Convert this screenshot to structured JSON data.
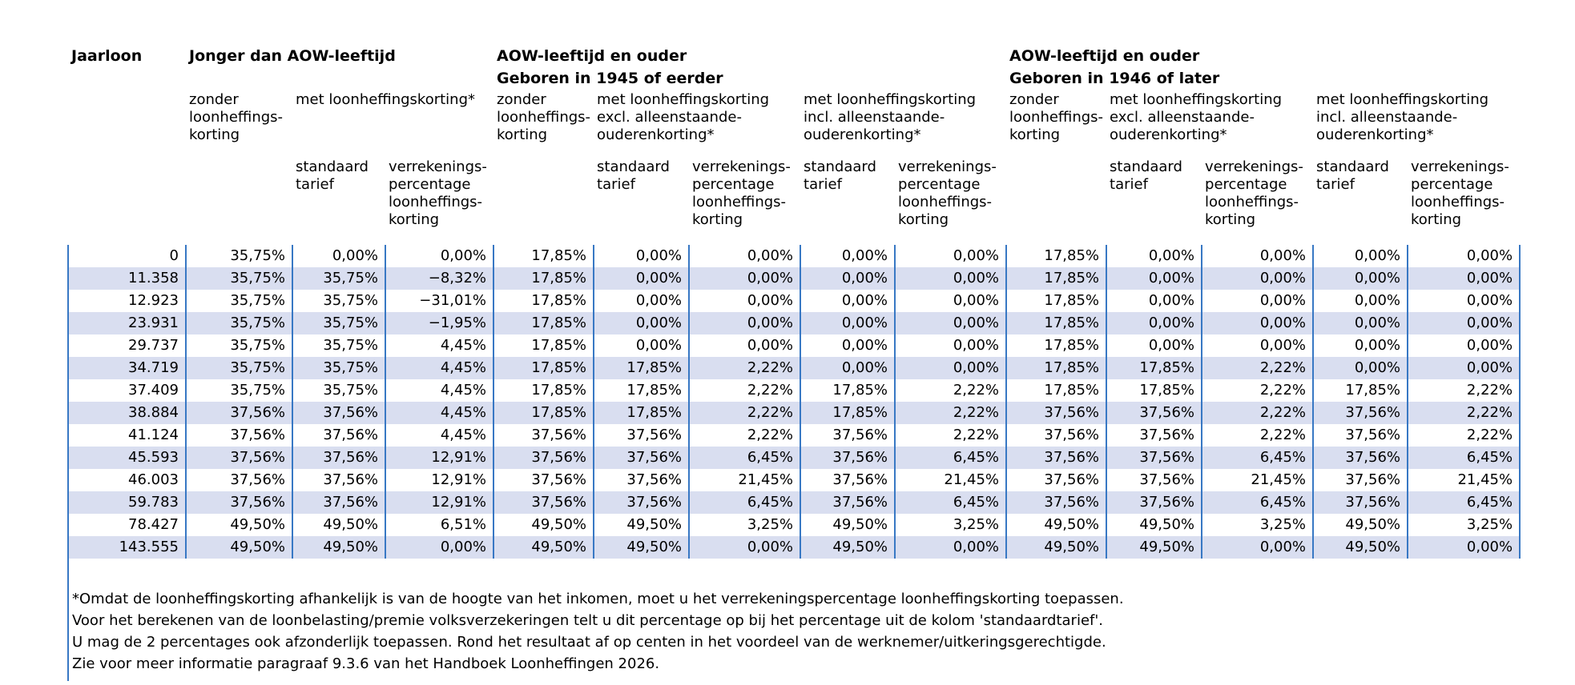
{
  "colors": {
    "border_blue": "#3878C4",
    "row_stripe": "#D9DEF0",
    "text": "#000000"
  },
  "header": {
    "jaarloon": "Jaarloon",
    "groups": [
      {
        "title": "Jonger dan AOW-leeftijd",
        "subtitle": ""
      },
      {
        "title": "AOW-leeftijd en ouder",
        "subtitle": "Geboren in 1945 of eerder"
      },
      {
        "title": "AOW-leeftijd en ouder",
        "subtitle": "Geboren in 1946 of later"
      }
    ],
    "col_zonder": "zonder\nloonheffings-\nkorting",
    "col_met": "met loonheffingskorting*",
    "col_met_excl": "met loonheffingskorting\nexcl. alleenstaande-\nouderenkorting*",
    "col_met_incl": "met loonheffingskorting\nincl. alleenstaande-\nouderenkorting*",
    "col_standaard": "standaard\ntarief",
    "col_verrekenings": "verrekenings-\npercentage\nloonheffings-\nkorting"
  },
  "rows": [
    {
      "jaarloon": "0",
      "values": [
        "35,75%",
        "0,00%",
        "0,00%",
        "17,85%",
        "0,00%",
        "0,00%",
        "0,00%",
        "0,00%",
        "17,85%",
        "0,00%",
        "0,00%",
        "0,00%",
        "0,00%"
      ]
    },
    {
      "jaarloon": "11.358",
      "values": [
        "35,75%",
        "35,75%",
        "−8,32%",
        "17,85%",
        "0,00%",
        "0,00%",
        "0,00%",
        "0,00%",
        "17,85%",
        "0,00%",
        "0,00%",
        "0,00%",
        "0,00%"
      ]
    },
    {
      "jaarloon": "12.923",
      "values": [
        "35,75%",
        "35,75%",
        "−31,01%",
        "17,85%",
        "0,00%",
        "0,00%",
        "0,00%",
        "0,00%",
        "17,85%",
        "0,00%",
        "0,00%",
        "0,00%",
        "0,00%"
      ]
    },
    {
      "jaarloon": "23.931",
      "values": [
        "35,75%",
        "35,75%",
        "−1,95%",
        "17,85%",
        "0,00%",
        "0,00%",
        "0,00%",
        "0,00%",
        "17,85%",
        "0,00%",
        "0,00%",
        "0,00%",
        "0,00%"
      ]
    },
    {
      "jaarloon": "29.737",
      "values": [
        "35,75%",
        "35,75%",
        "4,45%",
        "17,85%",
        "0,00%",
        "0,00%",
        "0,00%",
        "0,00%",
        "17,85%",
        "0,00%",
        "0,00%",
        "0,00%",
        "0,00%"
      ]
    },
    {
      "jaarloon": "34.719",
      "values": [
        "35,75%",
        "35,75%",
        "4,45%",
        "17,85%",
        "17,85%",
        "2,22%",
        "0,00%",
        "0,00%",
        "17,85%",
        "17,85%",
        "2,22%",
        "0,00%",
        "0,00%"
      ]
    },
    {
      "jaarloon": "37.409",
      "values": [
        "35,75%",
        "35,75%",
        "4,45%",
        "17,85%",
        "17,85%",
        "2,22%",
        "17,85%",
        "2,22%",
        "17,85%",
        "17,85%",
        "2,22%",
        "17,85%",
        "2,22%"
      ]
    },
    {
      "jaarloon": "38.884",
      "values": [
        "37,56%",
        "37,56%",
        "4,45%",
        "17,85%",
        "17,85%",
        "2,22%",
        "17,85%",
        "2,22%",
        "37,56%",
        "37,56%",
        "2,22%",
        "37,56%",
        "2,22%"
      ]
    },
    {
      "jaarloon": "41.124",
      "values": [
        "37,56%",
        "37,56%",
        "4,45%",
        "37,56%",
        "37,56%",
        "2,22%",
        "37,56%",
        "2,22%",
        "37,56%",
        "37,56%",
        "2,22%",
        "37,56%",
        "2,22%"
      ]
    },
    {
      "jaarloon": "45.593",
      "values": [
        "37,56%",
        "37,56%",
        "12,91%",
        "37,56%",
        "37,56%",
        "6,45%",
        "37,56%",
        "6,45%",
        "37,56%",
        "37,56%",
        "6,45%",
        "37,56%",
        "6,45%"
      ]
    },
    {
      "jaarloon": "46.003",
      "values": [
        "37,56%",
        "37,56%",
        "12,91%",
        "37,56%",
        "37,56%",
        "21,45%",
        "37,56%",
        "21,45%",
        "37,56%",
        "37,56%",
        "21,45%",
        "37,56%",
        "21,45%"
      ]
    },
    {
      "jaarloon": "59.783",
      "values": [
        "37,56%",
        "37,56%",
        "12,91%",
        "37,56%",
        "37,56%",
        "6,45%",
        "37,56%",
        "6,45%",
        "37,56%",
        "37,56%",
        "6,45%",
        "37,56%",
        "6,45%"
      ]
    },
    {
      "jaarloon": "78.427",
      "values": [
        "49,50%",
        "49,50%",
        "6,51%",
        "49,50%",
        "49,50%",
        "3,25%",
        "49,50%",
        "3,25%",
        "49,50%",
        "49,50%",
        "3,25%",
        "49,50%",
        "3,25%"
      ]
    },
    {
      "jaarloon": "143.555",
      "values": [
        "49,50%",
        "49,50%",
        "0,00%",
        "49,50%",
        "49,50%",
        "0,00%",
        "49,50%",
        "0,00%",
        "49,50%",
        "49,50%",
        "0,00%",
        "49,50%",
        "0,00%"
      ]
    }
  ],
  "footnote": {
    "lines": [
      "*Omdat de loonheffingskorting afhankelijk is van de hoogte van het inkomen, moet u het verrekeningspercentage loonheffingskorting toepassen.",
      "Voor het berekenen van de loonbelasting/premie volksverzekeringen telt u dit percentage op bij het percentage uit de kolom 'standaardtarief'.",
      "U mag de 2 percentages ook afzonderlijk toepassen. Rond het resultaat af op centen in het voordeel van de werknemer/uitkeringsgerechtigde.",
      "Zie voor meer informatie paragraaf 9.3.6 van het Handboek Loonheffingen 2026."
    ]
  }
}
